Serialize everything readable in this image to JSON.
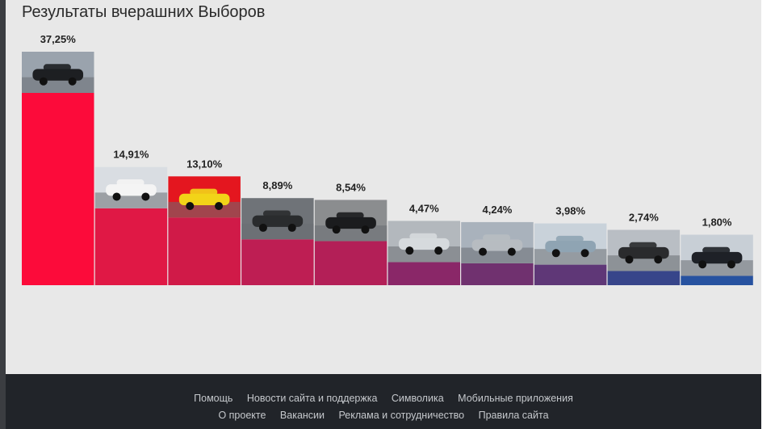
{
  "title": "Результаты вчерашних Выборов",
  "colors": {
    "panel_bg": "#e8e8e8",
    "footer_bg": "#212429",
    "footer_text": "#c5c8cc"
  },
  "chart_data": {
    "type": "bar",
    "title": "Результаты вчерашних Выборов",
    "xlabel": "",
    "ylabel": "",
    "grid": false,
    "legend": "none",
    "ylim": [
      0,
      37.25
    ],
    "values": [
      37.25,
      14.91,
      13.1,
      8.89,
      8.54,
      4.47,
      4.24,
      3.98,
      2.74,
      1.8
    ],
    "value_labels": [
      "37,25%",
      "14,91%",
      "13,10%",
      "8,89%",
      "8,54%",
      "4,47%",
      "4,24%",
      "3,98%",
      "2,74%",
      "1,80%"
    ],
    "bar_colors": [
      "#fc0b3a",
      "#e01845",
      "#d01a48",
      "#be1e53",
      "#b31f57",
      "#8a2768",
      "#70316f",
      "#5f3777",
      "#37458a",
      "#2752a0"
    ],
    "photo_icons": [
      "car-photo-icon",
      "car-photo-icon",
      "car-photo-icon",
      "car-photo-icon",
      "car-photo-icon",
      "car-photo-icon",
      "car-photo-icon",
      "car-photo-icon",
      "car-photo-icon",
      "car-photo-icon"
    ]
  },
  "footer": {
    "row1": [
      "Помощь",
      "Новости сайта и поддержка",
      "Символика",
      "Мобильные приложения"
    ],
    "row2": [
      "О проекте",
      "Вакансии",
      "Реклама и сотрудничество",
      "Правила сайта"
    ]
  }
}
